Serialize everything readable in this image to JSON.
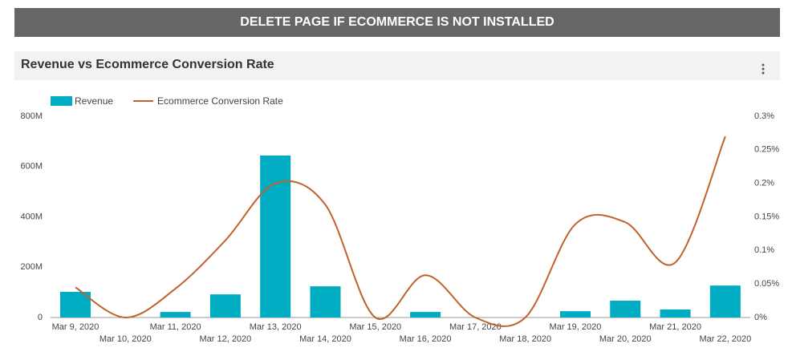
{
  "banner": {
    "text": "DELETE PAGE IF ECOMMERCE IS NOT INSTALLED"
  },
  "chart_data": {
    "type": "combo",
    "title": "Revenue vs Ecommerce Conversion Rate",
    "categories": [
      "Mar 9, 2020",
      "Mar 10, 2020",
      "Mar 11, 2020",
      "Mar 12, 2020",
      "Mar 13, 2020",
      "Mar 14, 2020",
      "Mar 15, 2020",
      "Mar 16, 2020",
      "Mar 17, 2020",
      "Mar 18, 2020",
      "Mar 19, 2020",
      "Mar 20, 2020",
      "Mar 21, 2020",
      "Mar 22, 2020"
    ],
    "series": [
      {
        "name": "Revenue",
        "type": "bar",
        "color": "#00acc1",
        "values": [
          102000000,
          0,
          22000000,
          92000000,
          644000000,
          124000000,
          0,
          22000000,
          0,
          0,
          25000000,
          67000000,
          32000000,
          127000000
        ]
      },
      {
        "name": "Ecommerce Conversion Rate",
        "type": "line",
        "axis": "y2",
        "color": "#c0622b",
        "values": [
          0.045,
          0,
          0.043,
          0.115,
          0.2,
          0.168,
          0,
          0.063,
          0,
          0,
          0.139,
          0.142,
          0.082,
          0.27
        ]
      }
    ],
    "ylim": [
      0,
      800000000
    ],
    "yticks": [
      {
        "value": 0,
        "label": "0"
      },
      {
        "value": 200000000,
        "label": "200M"
      },
      {
        "value": 400000000,
        "label": "400M"
      },
      {
        "value": 600000000,
        "label": "600M"
      },
      {
        "value": 800000000,
        "label": "800M"
      }
    ],
    "y2lim": [
      0,
      0.3
    ],
    "y2ticks": [
      {
        "value": 0,
        "label": "0%"
      },
      {
        "value": 0.05,
        "label": "0.05%"
      },
      {
        "value": 0.1,
        "label": "0.1%"
      },
      {
        "value": 0.15,
        "label": "0.15%"
      },
      {
        "value": 0.2,
        "label": "0.2%"
      },
      {
        "value": 0.25,
        "label": "0.25%"
      },
      {
        "value": 0.3,
        "label": "0.3%"
      }
    ],
    "grid": false,
    "legend": "top-left"
  }
}
